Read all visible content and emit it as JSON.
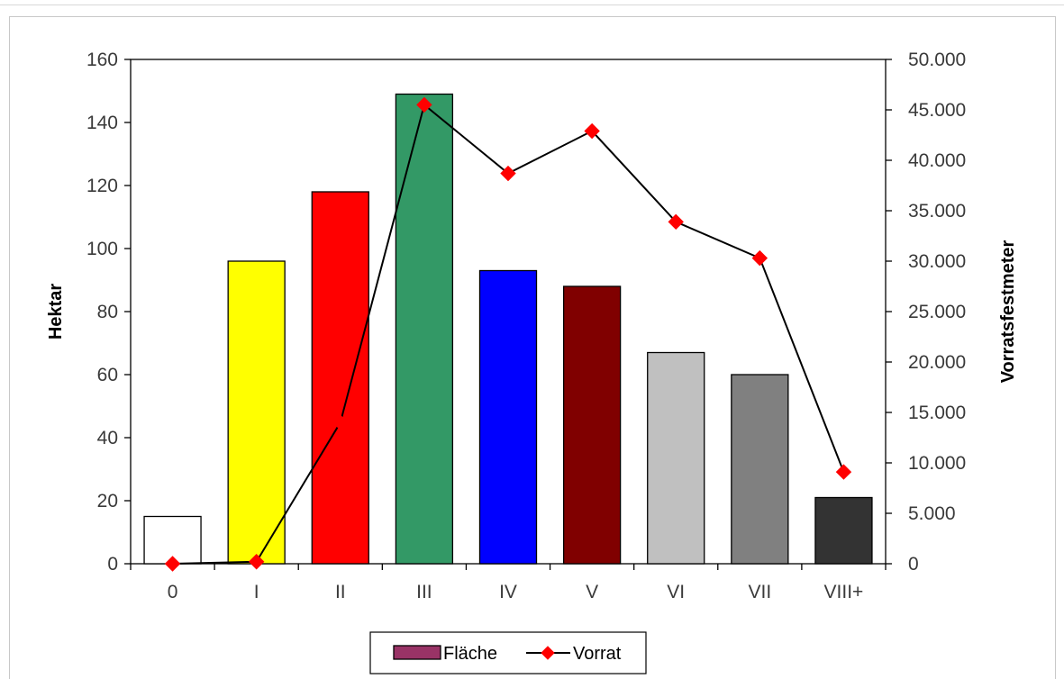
{
  "chart_data": {
    "type": "bar",
    "categories": [
      "0",
      "I",
      "II",
      "III",
      "IV",
      "V",
      "VI",
      "VII",
      "VIII+"
    ],
    "series": [
      {
        "name": "Fläche",
        "type": "bar",
        "axis": "left",
        "values": [
          15,
          96,
          118,
          149,
          93,
          88,
          67,
          60,
          21
        ],
        "colors": [
          "#ffffff",
          "#ffff00",
          "#ff0000",
          "#339966",
          "#0000ff",
          "#800000",
          "#c0c0c0",
          "#808080",
          "#333333"
        ]
      },
      {
        "name": "Vorrat",
        "type": "line",
        "axis": "right",
        "values": [
          0,
          200,
          14000,
          45500,
          38700,
          42900,
          33900,
          30300,
          9100
        ],
        "color": "#ff0000",
        "line_color": "#000000"
      }
    ],
    "ylabel": "Hektar",
    "y2label": "Vorratsfestmeter",
    "ylim": [
      0,
      160
    ],
    "y2lim": [
      0,
      50000
    ],
    "yticks": [
      "0",
      "20",
      "40",
      "60",
      "80",
      "100",
      "120",
      "140",
      "160"
    ],
    "y2ticks": [
      "0",
      "5.000",
      "10.000",
      "15.000",
      "20.000",
      "25.000",
      "30.000",
      "35.000",
      "40.000",
      "45.000",
      "50.000"
    ],
    "legend": {
      "placement": "bottom",
      "items": [
        "Fläche",
        "Vorrat"
      ],
      "bar_swatch_color": "#993366"
    },
    "grid": false
  }
}
